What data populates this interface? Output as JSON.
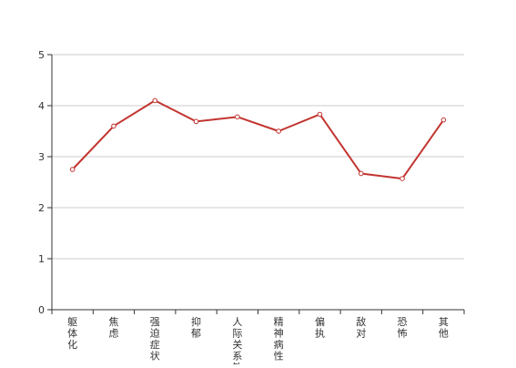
{
  "chart_data": {
    "type": "line",
    "categories": [
      "躯体化",
      "焦虑",
      "强迫症状",
      "抑郁",
      "人际关系敏感",
      "精神病性",
      "偏执",
      "敌对",
      "恐怖",
      "其他"
    ],
    "series": [
      {
        "values": [
          2.75,
          3.6,
          4.1,
          3.69,
          3.78,
          3.5,
          3.83,
          2.67,
          2.57,
          3.72
        ]
      }
    ],
    "ylim": [
      0,
      5
    ],
    "yticks": [
      0,
      1,
      2,
      3,
      4,
      5
    ],
    "grid": true,
    "colors": {
      "line": "#c23531",
      "grid": "#cccccc",
      "axis": "#333333"
    }
  }
}
